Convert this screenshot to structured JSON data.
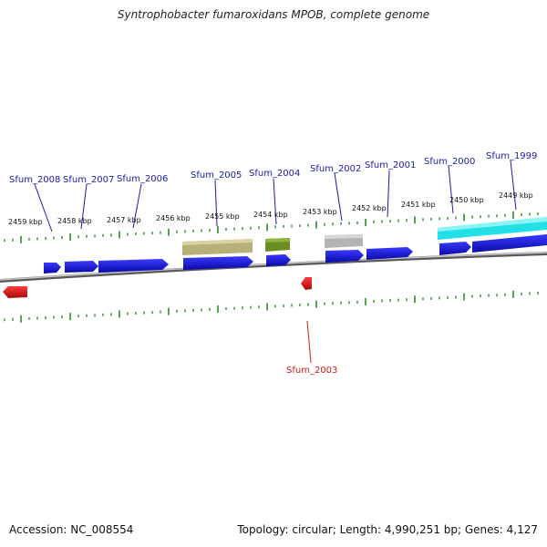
{
  "title": "Syntrophobacter fumaroxidans MPOB, complete genome",
  "footer": {
    "accession": "Accession: NC_008554",
    "topology": "Topology: circular; Length: 4,990,251 bp; Genes: 4,127"
  },
  "kbp_labels": [
    "2459 kbp",
    "2458 kbp",
    "2457 kbp",
    "2456 kbp",
    "2455 kbp",
    "2454 kbp",
    "2453 kbp",
    "2452 kbp",
    "2451 kbp",
    "2450 kbp",
    "2449 kbp"
  ],
  "gene_labels": [
    "Sfum_2008",
    "Sfum_2007",
    "Sfum_2006",
    "Sfum_2005",
    "Sfum_2004",
    "Sfum_2002",
    "Sfum_2001",
    "Sfum_2000",
    "Sfum_1999",
    "Sfum_2003"
  ],
  "colors": {
    "forward_gene": "#1414e6",
    "reverse_gene": "#e61414",
    "tick": "#2e8b2e",
    "backbone": "#8a8a8a",
    "feature_khaki": "#b8b07a",
    "feature_olive": "#6b8e23",
    "feature_gray": "#b4b4b4",
    "feature_cyan": "#22e0e6"
  }
}
